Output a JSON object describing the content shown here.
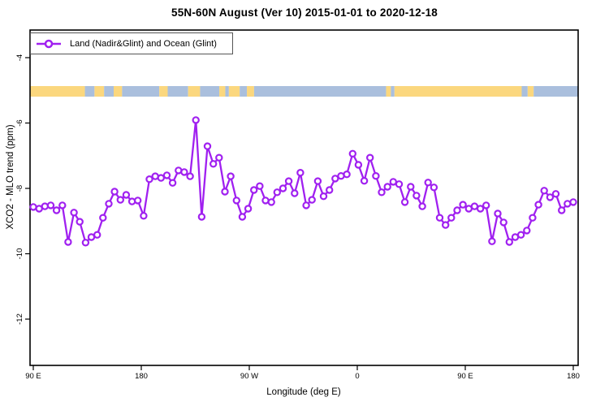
{
  "title": "55N-60N August (Ver 10)   2015-01-01 to 2020-12-18",
  "legend": {
    "label": "Land (Nadir&Glint) and Ocean (Glint)"
  },
  "colors": {
    "series": "#A020F0",
    "land": "#FBD77E",
    "ocean": "#AABFDD",
    "axis": "#000000"
  },
  "chart_data": {
    "type": "line",
    "title": "55N-60N August (Ver 10)   2015-01-01 to 2020-12-18",
    "xlabel": "Longitude (deg E)",
    "ylabel": "XCO2 - MLO trend (ppm)",
    "x_axis_wraps_globe": true,
    "x_range_deg": [
      90,
      540
    ],
    "ylim": [
      -13.5,
      -3.2
    ],
    "grid": false,
    "legend_position": "top-left",
    "x_ticks": [
      {
        "lon": 90,
        "label": "90 E"
      },
      {
        "lon": 180,
        "label": "180"
      },
      {
        "lon": 270,
        "label": "90 W"
      },
      {
        "lon": 360,
        "label": "0"
      },
      {
        "lon": 450,
        "label": "90 E"
      },
      {
        "lon": 540,
        "label": "180"
      }
    ],
    "y_ticks": [
      -4,
      -6,
      -8,
      -10,
      -12
    ],
    "series": [
      {
        "name": "Land (Nadir&Glint) and Ocean (Glint)",
        "marker": "open-circle",
        "color": "#A020F0",
        "values": [
          -8.57,
          -8.62,
          -8.55,
          -8.52,
          -8.67,
          -8.52,
          -9.64,
          -8.74,
          -9.02,
          -9.66,
          -9.49,
          -9.42,
          -8.9,
          -8.47,
          -8.1,
          -8.35,
          -8.2,
          -8.4,
          -8.37,
          -8.84,
          -7.72,
          -7.63,
          -7.68,
          -7.6,
          -7.83,
          -7.45,
          -7.5,
          -7.63,
          -5.91,
          -8.87,
          -6.71,
          -7.25,
          -7.06,
          -8.1,
          -7.63,
          -8.37,
          -8.87,
          -8.62,
          -8.05,
          -7.93,
          -8.37,
          -8.42,
          -8.12,
          -8.0,
          -7.78,
          -8.15,
          -7.52,
          -8.52,
          -8.35,
          -7.78,
          -8.24,
          -8.05,
          -7.7,
          -7.62,
          -7.57,
          -6.94,
          -7.28,
          -7.77,
          -7.06,
          -7.62,
          -8.12,
          -7.95,
          -7.8,
          -7.87,
          -8.42,
          -7.95,
          -8.22,
          -8.55,
          -7.82,
          -7.97,
          -8.9,
          -9.12,
          -8.9,
          -8.67,
          -8.5,
          -8.62,
          -8.55,
          -8.62,
          -8.52,
          -9.62,
          -8.77,
          -9.04,
          -9.64,
          -9.49,
          -9.42,
          -9.29,
          -8.9,
          -8.5,
          -8.07,
          -8.27,
          -8.17,
          -8.67,
          -8.47,
          -8.42
        ]
      }
    ],
    "map_strip": {
      "description": "land/ocean map band for 55N-60N latitude",
      "value_center": -5.0,
      "segments": [
        {
          "from": 90,
          "to": 133,
          "type": "land"
        },
        {
          "from": 133,
          "to": 141,
          "type": "ocean"
        },
        {
          "from": 141,
          "to": 149,
          "type": "land"
        },
        {
          "from": 149,
          "to": 157,
          "type": "ocean"
        },
        {
          "from": 157,
          "to": 164,
          "type": "land"
        },
        {
          "from": 164,
          "to": 195,
          "type": "ocean"
        },
        {
          "from": 195,
          "to": 202,
          "type": "land"
        },
        {
          "from": 202,
          "to": 219,
          "type": "ocean"
        },
        {
          "from": 219,
          "to": 229,
          "type": "land"
        },
        {
          "from": 229,
          "to": 245,
          "type": "ocean"
        },
        {
          "from": 245,
          "to": 250,
          "type": "land"
        },
        {
          "from": 250,
          "to": 253,
          "type": "ocean"
        },
        {
          "from": 253,
          "to": 262,
          "type": "land"
        },
        {
          "from": 262,
          "to": 268,
          "type": "ocean"
        },
        {
          "from": 268,
          "to": 274,
          "type": "land"
        },
        {
          "from": 274,
          "to": 384,
          "type": "ocean"
        },
        {
          "from": 384,
          "to": 388,
          "type": "land"
        },
        {
          "from": 388,
          "to": 391,
          "type": "ocean"
        },
        {
          "from": 391,
          "to": 497,
          "type": "land"
        },
        {
          "from": 497,
          "to": 502,
          "type": "ocean"
        },
        {
          "from": 502,
          "to": 507,
          "type": "land"
        },
        {
          "from": 507,
          "to": 540,
          "type": "ocean"
        }
      ]
    }
  }
}
